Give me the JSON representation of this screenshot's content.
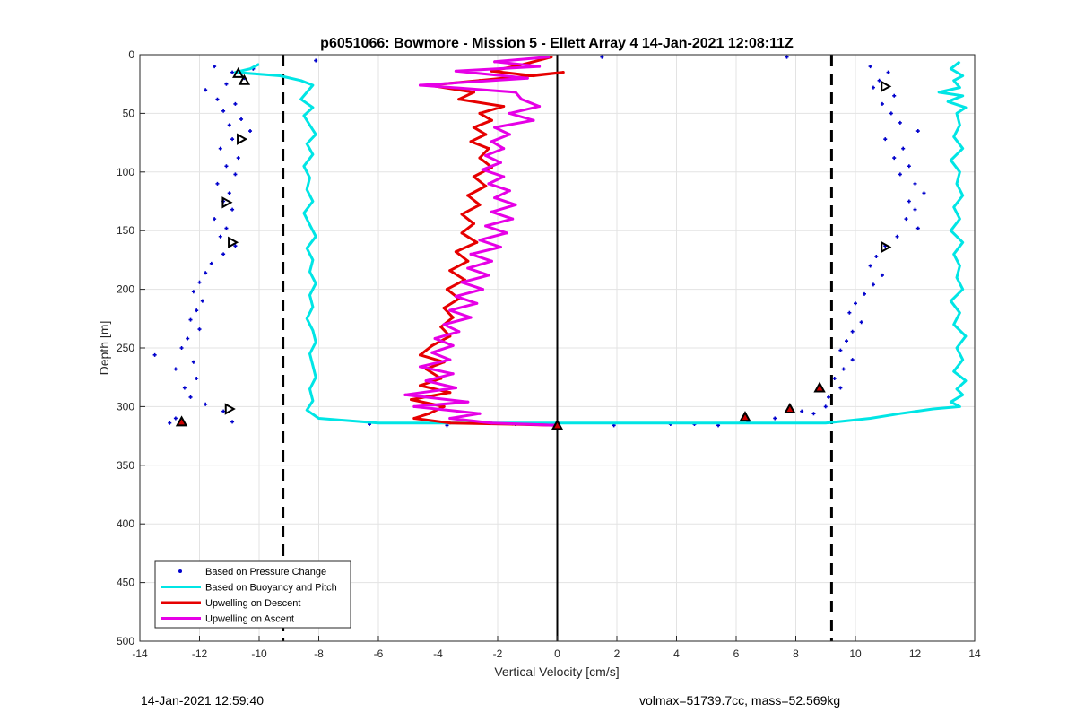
{
  "chart_data": {
    "type": "scatter",
    "title": "p6051066: Bowmore - Mission 5 - Ellett Array 4 14-Jan-2021 12:08:11Z",
    "xlabel": "Vertical Velocity [cm/s]",
    "ylabel": "Depth [m]",
    "xlim": [
      -14,
      14
    ],
    "ylim": [
      0,
      500
    ],
    "y_reversed": true,
    "xticks": [
      -14,
      -12,
      -10,
      -8,
      -6,
      -4,
      -2,
      0,
      2,
      4,
      6,
      8,
      10,
      12,
      14
    ],
    "yticks": [
      0,
      50,
      100,
      150,
      200,
      250,
      300,
      350,
      400,
      450,
      500
    ],
    "grid": true,
    "legend_location": "bottom-left",
    "reference_lines": [
      {
        "x": -9.2,
        "style": "dashed",
        "color": "#000000"
      },
      {
        "x": 9.2,
        "style": "dashed",
        "color": "#000000"
      },
      {
        "x": 0,
        "style": "solid",
        "color": "#000000"
      }
    ],
    "series": [
      {
        "name": "Based on Pressure Change",
        "kind": "dots",
        "color": "#0000cc",
        "points": [
          [
            -11.5,
            10
          ],
          [
            -10.9,
            15
          ],
          [
            -10.2,
            12
          ],
          [
            -10.5,
            20
          ],
          [
            -11.1,
            25
          ],
          [
            -11.8,
            30
          ],
          [
            -11.4,
            38
          ],
          [
            -10.8,
            42
          ],
          [
            -11.2,
            48
          ],
          [
            -10.6,
            55
          ],
          [
            -11.0,
            60
          ],
          [
            -10.3,
            65
          ],
          [
            -10.9,
            72
          ],
          [
            -11.3,
            80
          ],
          [
            -10.7,
            88
          ],
          [
            -11.1,
            95
          ],
          [
            -10.8,
            102
          ],
          [
            -11.4,
            110
          ],
          [
            -11.0,
            118
          ],
          [
            -11.2,
            125
          ],
          [
            -10.9,
            132
          ],
          [
            -11.5,
            140
          ],
          [
            -11.1,
            148
          ],
          [
            -11.3,
            155
          ],
          [
            -10.8,
            163
          ],
          [
            -11.2,
            170
          ],
          [
            -11.6,
            178
          ],
          [
            -11.8,
            186
          ],
          [
            -12.0,
            194
          ],
          [
            -12.2,
            202
          ],
          [
            -11.9,
            210
          ],
          [
            -12.1,
            218
          ],
          [
            -12.3,
            226
          ],
          [
            -12.0,
            234
          ],
          [
            -12.4,
            242
          ],
          [
            -12.6,
            250
          ],
          [
            -13.5,
            256
          ],
          [
            -12.2,
            262
          ],
          [
            -12.8,
            268
          ],
          [
            -12.1,
            276
          ],
          [
            -12.5,
            284
          ],
          [
            -12.3,
            292
          ],
          [
            -11.8,
            298
          ],
          [
            -11.2,
            304
          ],
          [
            -12.8,
            310
          ],
          [
            -13.0,
            314
          ],
          [
            -10.9,
            313
          ],
          [
            10.5,
            10
          ],
          [
            11.1,
            15
          ],
          [
            10.8,
            22
          ],
          [
            10.6,
            28
          ],
          [
            11.3,
            35
          ],
          [
            10.9,
            42
          ],
          [
            11.2,
            50
          ],
          [
            11.5,
            58
          ],
          [
            12.1,
            65
          ],
          [
            11.0,
            72
          ],
          [
            11.6,
            80
          ],
          [
            11.3,
            88
          ],
          [
            11.8,
            95
          ],
          [
            11.5,
            102
          ],
          [
            12.0,
            110
          ],
          [
            12.3,
            118
          ],
          [
            11.8,
            125
          ],
          [
            12.0,
            132
          ],
          [
            11.7,
            140
          ],
          [
            12.1,
            148
          ],
          [
            11.4,
            155
          ],
          [
            11.0,
            163
          ],
          [
            10.7,
            172
          ],
          [
            10.5,
            180
          ],
          [
            10.9,
            188
          ],
          [
            10.6,
            196
          ],
          [
            10.3,
            204
          ],
          [
            10.0,
            212
          ],
          [
            9.8,
            220
          ],
          [
            10.2,
            228
          ],
          [
            9.9,
            236
          ],
          [
            9.7,
            244
          ],
          [
            9.5,
            252
          ],
          [
            9.9,
            260
          ],
          [
            9.6,
            268
          ],
          [
            9.3,
            276
          ],
          [
            9.5,
            284
          ],
          [
            9.1,
            292
          ],
          [
            9.0,
            300
          ],
          [
            8.6,
            306
          ],
          [
            8.2,
            304
          ],
          [
            7.3,
            310
          ],
          [
            6.4,
            313
          ],
          [
            -6.3,
            315
          ],
          [
            -3.7,
            316
          ],
          [
            -1.4,
            315
          ],
          [
            1.9,
            316
          ],
          [
            3.8,
            315
          ],
          [
            4.6,
            315
          ],
          [
            5.4,
            316
          ],
          [
            0.0,
            317
          ],
          [
            1.5,
            2
          ],
          [
            7.7,
            2
          ],
          [
            -8.1,
            5
          ]
        ]
      },
      {
        "name": "Based on Buoyancy and Pitch",
        "kind": "line",
        "color": "#00e5e5",
        "points": [
          [
            -10.0,
            8
          ],
          [
            -10.3,
            12
          ],
          [
            -10.8,
            15
          ],
          [
            -9.3,
            18
          ],
          [
            -8.6,
            22
          ],
          [
            -8.2,
            26
          ],
          [
            -8.4,
            32
          ],
          [
            -8.6,
            38
          ],
          [
            -8.2,
            45
          ],
          [
            -8.5,
            52
          ],
          [
            -8.3,
            60
          ],
          [
            -8.1,
            68
          ],
          [
            -8.4,
            76
          ],
          [
            -8.2,
            85
          ],
          [
            -8.5,
            95
          ],
          [
            -8.3,
            105
          ],
          [
            -8.4,
            115
          ],
          [
            -8.2,
            125
          ],
          [
            -8.5,
            135
          ],
          [
            -8.3,
            145
          ],
          [
            -8.1,
            155
          ],
          [
            -8.4,
            165
          ],
          [
            -8.2,
            175
          ],
          [
            -8.3,
            185
          ],
          [
            -8.1,
            195
          ],
          [
            -8.3,
            205
          ],
          [
            -8.2,
            215
          ],
          [
            -8.4,
            225
          ],
          [
            -8.2,
            235
          ],
          [
            -8.1,
            245
          ],
          [
            -8.3,
            255
          ],
          [
            -8.2,
            265
          ],
          [
            -8.1,
            275
          ],
          [
            -8.3,
            285
          ],
          [
            -8.2,
            295
          ],
          [
            -8.4,
            303
          ],
          [
            -8.0,
            310
          ],
          [
            -6.0,
            314
          ],
          [
            -2.0,
            314
          ],
          [
            2.0,
            314
          ],
          [
            6.0,
            314
          ],
          [
            9.0,
            314
          ],
          [
            10.5,
            310
          ],
          [
            11.5,
            306
          ],
          [
            12.6,
            302
          ],
          [
            13.5,
            300
          ],
          [
            13.2,
            296
          ],
          [
            13.6,
            290
          ],
          [
            13.4,
            285
          ],
          [
            13.7,
            278
          ],
          [
            13.3,
            270
          ],
          [
            13.6,
            260
          ],
          [
            13.4,
            250
          ],
          [
            13.7,
            240
          ],
          [
            13.3,
            230
          ],
          [
            13.5,
            220
          ],
          [
            13.2,
            210
          ],
          [
            13.6,
            200
          ],
          [
            13.4,
            190
          ],
          [
            13.5,
            180
          ],
          [
            13.3,
            170
          ],
          [
            13.6,
            160
          ],
          [
            13.2,
            150
          ],
          [
            13.5,
            140
          ],
          [
            13.3,
            130
          ],
          [
            13.6,
            120
          ],
          [
            13.4,
            110
          ],
          [
            13.5,
            100
          ],
          [
            13.2,
            90
          ],
          [
            13.6,
            80
          ],
          [
            13.3,
            70
          ],
          [
            13.5,
            60
          ],
          [
            13.4,
            50
          ],
          [
            13.7,
            45
          ],
          [
            13.1,
            40
          ],
          [
            13.6,
            35
          ],
          [
            12.8,
            32
          ],
          [
            13.5,
            28
          ],
          [
            13.3,
            22
          ],
          [
            13.6,
            18
          ],
          [
            13.2,
            12
          ],
          [
            13.5,
            6
          ]
        ]
      },
      {
        "name": "Upwelling on Descent",
        "kind": "line",
        "color": "#e60000",
        "points": [
          [
            -0.2,
            2
          ],
          [
            -1.1,
            8
          ],
          [
            -2.2,
            14
          ],
          [
            -0.8,
            18
          ],
          [
            0.2,
            15
          ],
          [
            -2.6,
            22
          ],
          [
            -4.3,
            26
          ],
          [
            -2.8,
            32
          ],
          [
            -3.3,
            38
          ],
          [
            -1.8,
            44
          ],
          [
            -2.6,
            50
          ],
          [
            -2.2,
            56
          ],
          [
            -2.8,
            62
          ],
          [
            -2.4,
            68
          ],
          [
            -2.9,
            74
          ],
          [
            -2.3,
            80
          ],
          [
            -2.6,
            88
          ],
          [
            -2.2,
            96
          ],
          [
            -2.8,
            104
          ],
          [
            -2.4,
            112
          ],
          [
            -3.0,
            120
          ],
          [
            -2.6,
            128
          ],
          [
            -3.2,
            136
          ],
          [
            -2.8,
            144
          ],
          [
            -3.2,
            152
          ],
          [
            -2.7,
            160
          ],
          [
            -3.4,
            168
          ],
          [
            -3.0,
            176
          ],
          [
            -3.6,
            184
          ],
          [
            -3.1,
            192
          ],
          [
            -3.7,
            200
          ],
          [
            -3.3,
            208
          ],
          [
            -3.8,
            216
          ],
          [
            -3.5,
            224
          ],
          [
            -3.9,
            232
          ],
          [
            -3.6,
            240
          ],
          [
            -4.2,
            248
          ],
          [
            -4.6,
            256
          ],
          [
            -3.8,
            262
          ],
          [
            -4.4,
            268
          ],
          [
            -3.9,
            276
          ],
          [
            -4.6,
            282
          ],
          [
            -3.6,
            288
          ],
          [
            -4.9,
            294
          ],
          [
            -3.8,
            300
          ],
          [
            -4.3,
            306
          ],
          [
            -4.8,
            310
          ],
          [
            -3.6,
            314
          ],
          [
            -1.5,
            315
          ],
          [
            0.0,
            316
          ]
        ]
      },
      {
        "name": "Upwelling on Ascent",
        "kind": "line",
        "color": "#e600e6",
        "points": [
          [
            0.0,
            316
          ],
          [
            -2.2,
            314
          ],
          [
            -3.6,
            310
          ],
          [
            -2.6,
            306
          ],
          [
            -4.8,
            300
          ],
          [
            -3.0,
            296
          ],
          [
            -5.1,
            290
          ],
          [
            -3.4,
            284
          ],
          [
            -4.4,
            278
          ],
          [
            -3.5,
            272
          ],
          [
            -4.6,
            266
          ],
          [
            -3.6,
            260
          ],
          [
            -4.2,
            254
          ],
          [
            -3.5,
            248
          ],
          [
            -4.1,
            242
          ],
          [
            -3.3,
            236
          ],
          [
            -3.8,
            230
          ],
          [
            -2.9,
            224
          ],
          [
            -3.6,
            218
          ],
          [
            -2.7,
            212
          ],
          [
            -3.4,
            206
          ],
          [
            -2.5,
            200
          ],
          [
            -3.2,
            194
          ],
          [
            -2.3,
            188
          ],
          [
            -3.0,
            182
          ],
          [
            -2.2,
            176
          ],
          [
            -2.9,
            170
          ],
          [
            -1.9,
            164
          ],
          [
            -2.6,
            158
          ],
          [
            -1.7,
            152
          ],
          [
            -2.4,
            146
          ],
          [
            -1.5,
            140
          ],
          [
            -2.2,
            134
          ],
          [
            -1.4,
            128
          ],
          [
            -2.1,
            122
          ],
          [
            -1.6,
            116
          ],
          [
            -2.3,
            110
          ],
          [
            -1.8,
            104
          ],
          [
            -2.5,
            98
          ],
          [
            -1.9,
            92
          ],
          [
            -2.4,
            86
          ],
          [
            -1.8,
            80
          ],
          [
            -2.2,
            74
          ],
          [
            -1.6,
            68
          ],
          [
            -2.1,
            62
          ],
          [
            -0.8,
            56
          ],
          [
            -1.6,
            50
          ],
          [
            -0.6,
            44
          ],
          [
            -1.2,
            38
          ],
          [
            -1.4,
            32
          ],
          [
            -4.6,
            26
          ],
          [
            -1.0,
            20
          ],
          [
            -3.4,
            14
          ],
          [
            -0.6,
            10
          ],
          [
            -2.1,
            6
          ],
          [
            -0.3,
            2
          ]
        ]
      }
    ],
    "markers": [
      {
        "shape": "triangle-up",
        "fill": "none",
        "stroke": "#000000",
        "points": [
          [
            -10.7,
            16
          ],
          [
            -10.5,
            22
          ]
        ]
      },
      {
        "shape": "triangle-right",
        "fill": "none",
        "stroke": "#000000",
        "points": [
          [
            -10.6,
            72
          ],
          [
            -11.1,
            126
          ],
          [
            -10.9,
            160
          ],
          [
            -11.0,
            302
          ],
          [
            11.0,
            27
          ],
          [
            11.0,
            164
          ]
        ]
      },
      {
        "shape": "triangle-up",
        "fill": "#cc0000",
        "stroke": "#000000",
        "points": [
          [
            -12.6,
            313
          ],
          [
            0.0,
            316
          ],
          [
            6.3,
            309
          ],
          [
            7.8,
            302
          ],
          [
            8.8,
            284
          ]
        ]
      }
    ]
  },
  "footer": {
    "left": "14-Jan-2021 12:59:40",
    "right": "volmax=51739.7cc, mass=52.569kg"
  }
}
